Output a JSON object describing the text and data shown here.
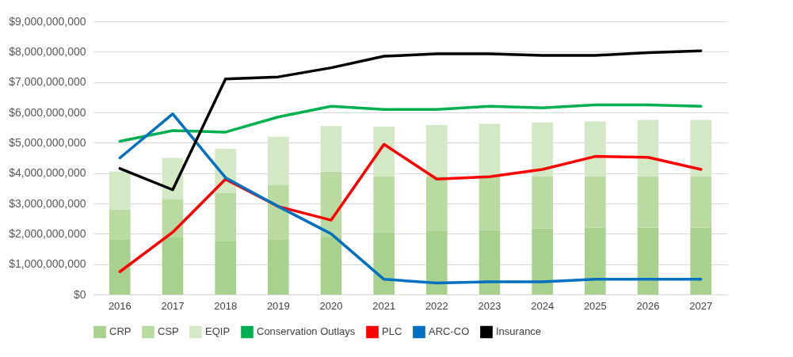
{
  "chart_data": {
    "type": "bar",
    "stacked": true,
    "categories": [
      "2016",
      "2017",
      "2018",
      "2019",
      "2020",
      "2021",
      "2022",
      "2023",
      "2024",
      "2025",
      "2026",
      "2027"
    ],
    "series": [
      {
        "name": "CRP",
        "color": "#a9d18e",
        "values": [
          1800000000,
          1900000000,
          1750000000,
          1800000000,
          1900000000,
          2040000000,
          2090000000,
          2120000000,
          2170000000,
          2200000000,
          2200000000,
          2200000000
        ]
      },
      {
        "name": "CSP",
        "color": "#b9dba1",
        "values": [
          1000000000,
          1250000000,
          1600000000,
          1800000000,
          2150000000,
          1860000000,
          1810000000,
          1780000000,
          1730000000,
          1700000000,
          1700000000,
          1700000000
        ]
      },
      {
        "name": "EQIP",
        "color": "#d3e8c4",
        "values": [
          1250000000,
          1350000000,
          1450000000,
          1600000000,
          1500000000,
          1630000000,
          1680000000,
          1720000000,
          1770000000,
          1800000000,
          1850000000,
          1850000000
        ]
      },
      {
        "name": "Conservation Outlays",
        "type": "line",
        "color": "#00b050",
        "values": [
          5050000000,
          5400000000,
          5350000000,
          5850000000,
          6200000000,
          6100000000,
          6100000000,
          6200000000,
          6150000000,
          6250000000,
          6250000000,
          6200000000
        ]
      },
      {
        "name": "PLC",
        "type": "line",
        "color": "#ff0000",
        "values": [
          750000000,
          2050000000,
          3800000000,
          2900000000,
          2450000000,
          4950000000,
          3800000000,
          3880000000,
          4120000000,
          4550000000,
          4520000000,
          4120000000
        ]
      },
      {
        "name": "ARC-CO",
        "type": "line",
        "color": "#0070c0",
        "values": [
          4500000000,
          5950000000,
          3850000000,
          2900000000,
          2000000000,
          500000000,
          380000000,
          420000000,
          420000000,
          500000000,
          500000000,
          500000000
        ]
      },
      {
        "name": "Insurance",
        "type": "line",
        "color": "#000000",
        "values": [
          4150000000,
          3450000000,
          7100000000,
          7170000000,
          7470000000,
          7850000000,
          7930000000,
          7930000000,
          7880000000,
          7880000000,
          7970000000,
          8030000000
        ]
      }
    ],
    "ylim": [
      0,
      9000000000
    ],
    "yticks": [
      {
        "value": 0,
        "label": "$0"
      },
      {
        "value": 1000000000,
        "label": "$1,000,000,000"
      },
      {
        "value": 2000000000,
        "label": "$2,000,000,000"
      },
      {
        "value": 3000000000,
        "label": "$3,000,000,000"
      },
      {
        "value": 4000000000,
        "label": "$4,000,000,000"
      },
      {
        "value": 5000000000,
        "label": "$5,000,000,000"
      },
      {
        "value": 6000000000,
        "label": "$6,000,000,000"
      },
      {
        "value": 7000000000,
        "label": "$7,000,000,000"
      },
      {
        "value": 8000000000,
        "label": "$8,000,000,000"
      },
      {
        "value": 9000000000,
        "label": "$9,000,000,000"
      }
    ],
    "grid": "y",
    "legend": "bottom",
    "line_style": "solid",
    "marker": "none"
  }
}
